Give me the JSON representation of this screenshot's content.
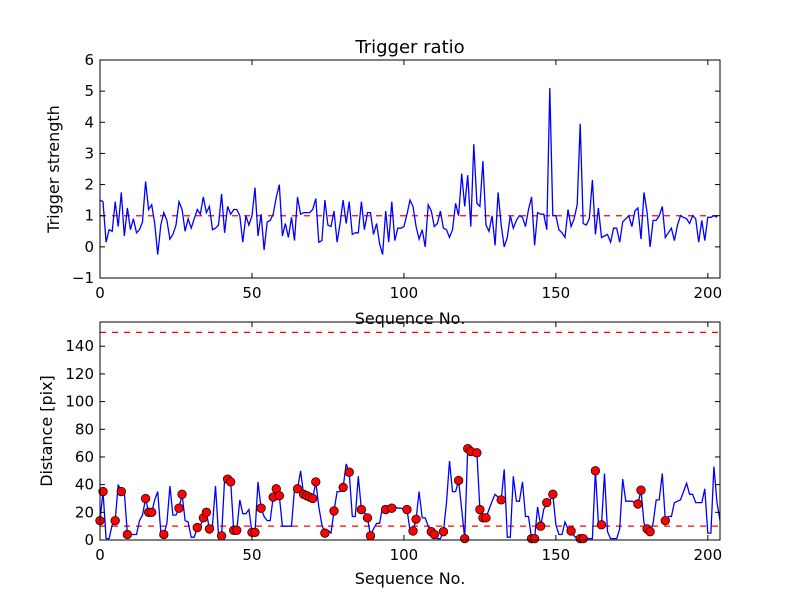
{
  "chart_data": [
    {
      "type": "line",
      "title": "Trigger ratio",
      "xlabel": "Sequence No.",
      "ylabel": "Trigger strength",
      "xlim": [
        0,
        204
      ],
      "ylim": [
        -1,
        6
      ],
      "xticks": [
        0,
        50,
        100,
        150,
        200
      ],
      "yticks": [
        -1,
        0,
        1,
        2,
        3,
        4,
        5,
        6
      ],
      "grid": false,
      "line_color": "#0000ff",
      "threshold_color": "#ff0000",
      "thresholds": [
        1
      ],
      "values": [
        1.5,
        1.45,
        0.15,
        0.55,
        0.5,
        1.45,
        0.65,
        1.75,
        0.35,
        1.25,
        0.55,
        0.9,
        0.45,
        0.55,
        0.8,
        2.1,
        1.2,
        1.35,
        0.75,
        -0.25,
        0.7,
        1.1,
        0.85,
        0.25,
        0.4,
        0.7,
        1.45,
        1.2,
        0.5,
        0.9,
        0.6,
        0.9,
        1.2,
        1.05,
        1.6,
        1.1,
        1.3,
        0.55,
        0.6,
        0.7,
        1.7,
        0.45,
        1.3,
        1.05,
        1.2,
        1.2,
        1.0,
        0.15,
        1.0,
        0.7,
        1.0,
        1.9,
        0.35,
        1.05,
        -0.1,
        0.8,
        0.85,
        1.05,
        1.6,
        2.0,
        0.35,
        0.75,
        0.3,
        0.95,
        0.2,
        1.6,
        1.05,
        1.1,
        1.1,
        1.1,
        1.2,
        1.55,
        0.15,
        0.2,
        1.5,
        0.7,
        0.65,
        1.15,
        0.15,
        0.75,
        1.5,
        0.75,
        1.45,
        0.4,
        0.45,
        0.45,
        1.45,
        0.55,
        1.1,
        1.1,
        0.4,
        0.75,
        0.1,
        -0.25,
        1.15,
        0.15,
        1.45,
        0.2,
        0.6,
        0.6,
        0.65,
        1.05,
        1.5,
        1.3,
        0.65,
        0.25,
        0.55,
        0.0,
        1.35,
        1.15,
        0.65,
        0.75,
        1.15,
        0.6,
        0.55,
        0.3,
        0.55,
        1.4,
        1.0,
        2.35,
        1.3,
        2.3,
        0.65,
        3.3,
        1.4,
        1.3,
        2.75,
        0.7,
        0.5,
        1.0,
        0.05,
        1.75,
        0.7,
        0.0,
        0.3,
        1.0,
        0.6,
        0.85,
        1.0,
        0.95,
        0.65,
        1.2,
        1.6,
        0.05,
        1.1,
        1.05,
        1.05,
        0.55,
        5.1,
        1.0,
        1.0,
        0.55,
        0.45,
        0.3,
        1.2,
        0.65,
        0.9,
        1.35,
        3.95,
        0.75,
        0.7,
        0.9,
        2.15,
        0.4,
        1.25,
        0.3,
        0.35,
        0.4,
        0.15,
        0.6,
        0.6,
        0.15,
        0.8,
        0.9,
        1.0,
        0.65,
        1.15,
        1.25,
        0.25,
        1.75,
        1.1,
        0.0,
        0.85,
        0.85,
        1.0,
        1.3,
        0.3,
        0.45,
        0.6,
        0.2,
        0.7,
        1.0,
        0.95,
        0.9,
        0.75,
        1.0,
        0.9,
        0.15,
        0.85,
        0.2,
        0.95,
        0.95,
        1.0,
        0.95
      ]
    },
    {
      "type": "line",
      "title": "",
      "xlabel": "Sequence No.",
      "ylabel": "Distance [pix]",
      "xlim": [
        0,
        204
      ],
      "ylim": [
        0,
        157.5
      ],
      "xticks": [
        0,
        50,
        100,
        150,
        200
      ],
      "yticks": [
        0,
        20,
        40,
        60,
        80,
        100,
        120,
        140
      ],
      "grid": false,
      "line_color": "#0000ff",
      "marker_color": "#ff0000",
      "threshold_color": "#ff0000",
      "thresholds": [
        10,
        150
      ],
      "values": [
        14,
        35,
        1,
        1,
        11,
        14,
        40,
        35,
        35,
        4,
        4,
        4,
        4,
        14,
        18,
        30,
        20,
        20,
        29,
        35,
        6,
        4,
        12,
        39,
        18,
        18,
        23,
        33,
        14,
        13,
        2,
        2,
        9,
        10,
        16,
        20,
        8,
        11,
        39,
        4,
        3,
        44,
        44,
        42,
        7,
        7,
        29,
        19,
        19,
        22,
        5.5,
        5.5,
        42,
        23,
        17,
        14,
        14,
        31,
        37,
        32,
        10,
        10,
        10,
        10,
        37,
        37,
        50,
        33,
        32,
        31,
        30,
        42,
        24,
        11,
        5,
        7,
        5,
        21,
        35,
        35,
        38,
        55,
        49,
        17,
        17,
        46,
        22,
        20,
        16,
        3,
        8,
        12,
        12,
        24,
        22,
        22,
        23,
        24,
        23,
        23,
        22,
        22,
        7,
        6.5,
        15,
        35,
        16,
        16,
        10,
        6,
        4,
        1,
        1,
        6,
        27,
        57,
        35,
        35,
        43,
        22,
        1,
        66,
        64,
        63,
        63,
        22,
        16,
        16,
        22,
        28,
        33,
        31,
        29,
        51,
        2,
        2,
        46,
        28,
        28,
        42,
        17,
        17,
        1,
        1,
        24,
        10,
        22,
        27,
        28,
        33,
        11,
        4,
        4,
        13,
        8,
        6.5,
        3,
        1,
        1,
        1,
        1,
        1,
        1,
        50,
        12,
        11,
        48,
        6,
        1,
        1,
        1,
        8,
        44,
        28,
        28,
        28,
        27,
        26,
        36,
        12,
        8,
        6,
        12,
        29,
        29,
        48,
        14,
        17,
        17,
        27,
        28,
        29,
        35,
        41,
        33,
        33,
        27,
        27,
        27,
        37,
        5,
        5,
        53,
        27,
        14
      ],
      "markers": [
        [
          0,
          14
        ],
        [
          1,
          35
        ],
        [
          5,
          14
        ],
        [
          7,
          35
        ],
        [
          9,
          4
        ],
        [
          15,
          30
        ],
        [
          16,
          20
        ],
        [
          17,
          20
        ],
        [
          21,
          4
        ],
        [
          26,
          23
        ],
        [
          27,
          33
        ],
        [
          32,
          9
        ],
        [
          34,
          16
        ],
        [
          35,
          20
        ],
        [
          36,
          8
        ],
        [
          40,
          3
        ],
        [
          42,
          44
        ],
        [
          43,
          42
        ],
        [
          44,
          7
        ],
        [
          45,
          7
        ],
        [
          50,
          5.5
        ],
        [
          51,
          5.5
        ],
        [
          53,
          23
        ],
        [
          57,
          31
        ],
        [
          58,
          37
        ],
        [
          59,
          32
        ],
        [
          65,
          37
        ],
        [
          67,
          33
        ],
        [
          68,
          32
        ],
        [
          69,
          31
        ],
        [
          70,
          30
        ],
        [
          71,
          42
        ],
        [
          74,
          5
        ],
        [
          77,
          21
        ],
        [
          80,
          38
        ],
        [
          82,
          49
        ],
        [
          86,
          22
        ],
        [
          88,
          16
        ],
        [
          89,
          3
        ],
        [
          94,
          22
        ],
        [
          96,
          23
        ],
        [
          101,
          22
        ],
        [
          103,
          6.5
        ],
        [
          104,
          15
        ],
        [
          109,
          6
        ],
        [
          110,
          4
        ],
        [
          113,
          6
        ],
        [
          118,
          43
        ],
        [
          120,
          1
        ],
        [
          121,
          66
        ],
        [
          122,
          64
        ],
        [
          124,
          63
        ],
        [
          125,
          22
        ],
        [
          126,
          16
        ],
        [
          127,
          16
        ],
        [
          132,
          29
        ],
        [
          142,
          1
        ],
        [
          143,
          1
        ],
        [
          145,
          10
        ],
        [
          147,
          27
        ],
        [
          149,
          33
        ],
        [
          155,
          6.5
        ],
        [
          158,
          1
        ],
        [
          159,
          1
        ],
        [
          163,
          50
        ],
        [
          165,
          11
        ],
        [
          177,
          26
        ],
        [
          178,
          36
        ],
        [
          180,
          8
        ],
        [
          181,
          6
        ],
        [
          186,
          14
        ]
      ]
    }
  ]
}
